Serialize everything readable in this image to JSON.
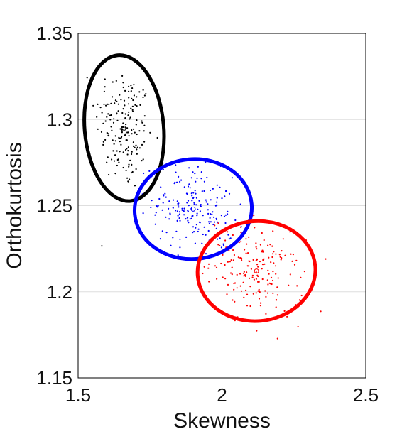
{
  "chart_data": {
    "type": "scatter",
    "title": "",
    "xlabel": "Skewness",
    "ylabel": "Orthokurtosis",
    "xlim": [
      1.5,
      2.5
    ],
    "ylim": [
      1.15,
      1.35
    ],
    "xticks": [
      1.5,
      2,
      2.5
    ],
    "xtick_labels": [
      "1.5",
      "2",
      "2.5"
    ],
    "yticks": [
      1.15,
      1.2,
      1.25,
      1.3,
      1.35
    ],
    "ytick_labels": [
      "1.15",
      "1.2",
      "1.25",
      "1.3",
      "1.35"
    ],
    "grid": true,
    "series": [
      {
        "color": "#000000",
        "mean": [
          1.66,
          1.295
        ],
        "ellipse": {
          "center": [
            1.66,
            1.295
          ],
          "semi_x": 0.275,
          "semi_y": 0.085,
          "angle_deg": -5
        },
        "point_spread": {
          "sx": 0.05,
          "sy": 0.018,
          "rho": -0.2
        },
        "num_points": 180
      },
      {
        "color": "#0000ff",
        "mean": [
          1.9,
          1.248
        ],
        "ellipse": {
          "center": [
            1.9,
            1.248
          ],
          "semi_x": 0.408,
          "semi_y": 0.058,
          "angle_deg": -5
        },
        "point_spread": {
          "sx": 0.07,
          "sy": 0.013,
          "rho": -0.25
        },
        "num_points": 200
      },
      {
        "color": "#ff0000",
        "mean": [
          2.12,
          1.212
        ],
        "ellipse": {
          "center": [
            2.12,
            1.212
          ],
          "semi_x": 0.41,
          "semi_y": 0.058,
          "angle_deg": -5
        },
        "point_spread": {
          "sx": 0.08,
          "sy": 0.013,
          "rho": -0.25
        },
        "num_points": 190
      }
    ]
  }
}
